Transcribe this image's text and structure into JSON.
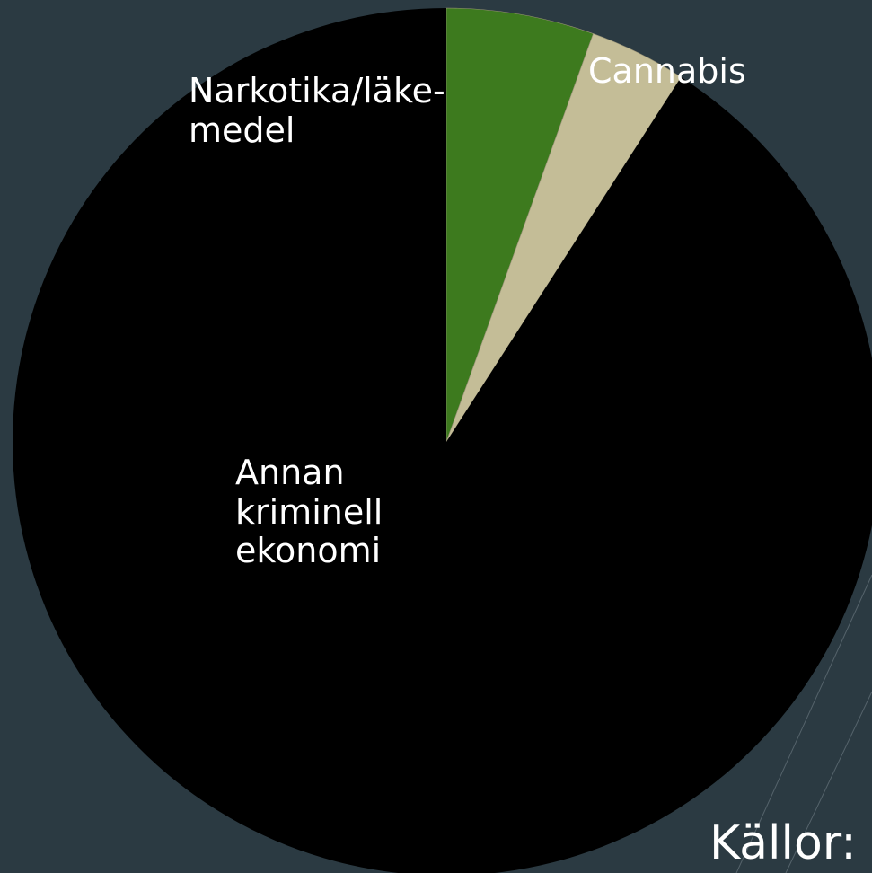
{
  "chart_data": {
    "type": "pie",
    "categories": [
      "Narkotika/läke-medel",
      "Cannabis",
      "Annan kriminell ekonomi"
    ],
    "values": [
      5.5,
      3.6,
      90.9
    ],
    "colors": [
      "#3d7a1e",
      "#c4bd97",
      "#000000"
    ],
    "annotation": "Källor:"
  }
}
